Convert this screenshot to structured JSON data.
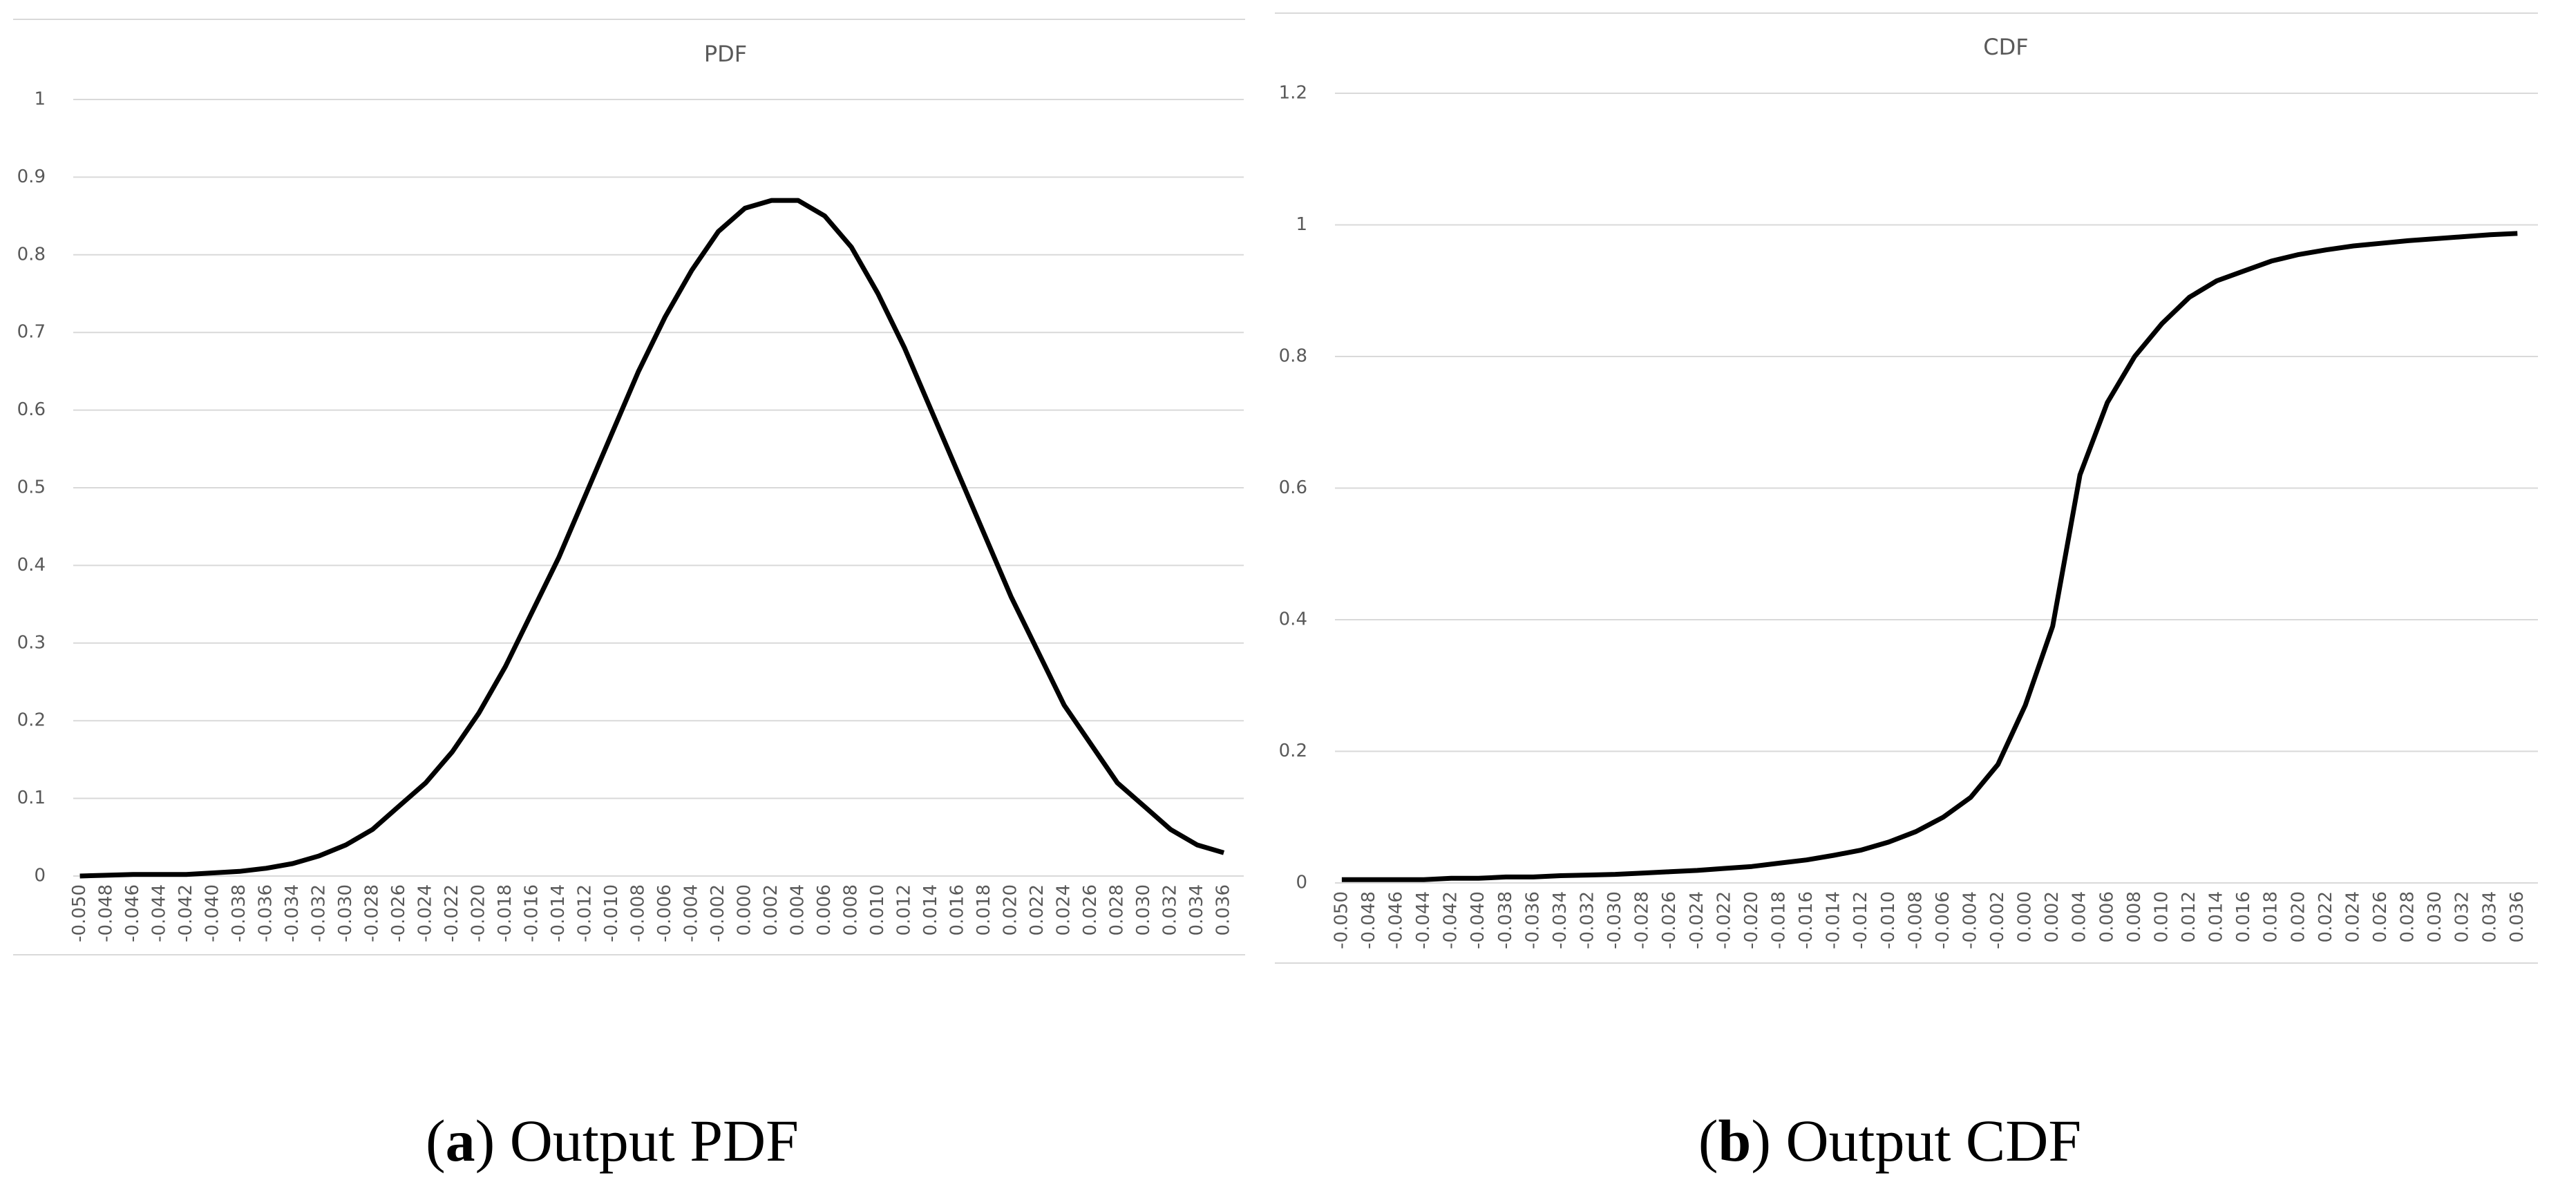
{
  "chart_data": [
    {
      "type": "line",
      "title": "PDF",
      "categories": [
        "-0.050",
        "-0.048",
        "-0.046",
        "-0.044",
        "-0.042",
        "-0.040",
        "-0.038",
        "-0.036",
        "-0.034",
        "-0.032",
        "-0.030",
        "-0.028",
        "-0.026",
        "-0.024",
        "-0.022",
        "-0.020",
        "-0.018",
        "-0.016",
        "-0.014",
        "-0.012",
        "-0.010",
        "-0.008",
        "-0.006",
        "-0.004",
        "-0.002",
        "0.000",
        "0.002",
        "0.004",
        "0.006",
        "0.008",
        "0.010",
        "0.012",
        "0.014",
        "0.016",
        "0.018",
        "0.020",
        "0.022",
        "0.024",
        "0.026",
        "0.028",
        "0.030",
        "0.032",
        "0.034",
        "0.036"
      ],
      "series": [
        {
          "color": "#000000",
          "values": [
            0,
            0.001,
            0.002,
            0.002,
            0.002,
            0.004,
            0.006,
            0.01,
            0.016,
            0.026,
            0.04,
            0.06,
            0.09,
            0.12,
            0.16,
            0.21,
            0.27,
            0.34,
            0.41,
            0.49,
            0.57,
            0.65,
            0.72,
            0.78,
            0.83,
            0.86,
            0.87,
            0.87,
            0.85,
            0.81,
            0.75,
            0.68,
            0.6,
            0.52,
            0.44,
            0.36,
            0.29,
            0.22,
            0.17,
            0.12,
            0.09,
            0.06,
            0.04,
            0.03
          ]
        }
      ],
      "ylim": [
        0,
        1
      ],
      "yticks": [
        0,
        0.1,
        0.2,
        0.3,
        0.4,
        0.5,
        0.6,
        0.7,
        0.8,
        0.9,
        1
      ],
      "grid": true
    },
    {
      "type": "line",
      "title": "CDF",
      "categories": [
        "-0.050",
        "-0.048",
        "-0.046",
        "-0.044",
        "-0.042",
        "-0.040",
        "-0.038",
        "-0.036",
        "-0.034",
        "-0.032",
        "-0.030",
        "-0.028",
        "-0.026",
        "-0.024",
        "-0.022",
        "-0.020",
        "-0.018",
        "-0.016",
        "-0.014",
        "-0.012",
        "-0.010",
        "-0.008",
        "-0.006",
        "-0.004",
        "-0.002",
        "0.000",
        "0.002",
        "0.004",
        "0.006",
        "0.008",
        "0.010",
        "0.012",
        "0.014",
        "0.016",
        "0.018",
        "0.020",
        "0.022",
        "0.024",
        "0.026",
        "0.028",
        "0.030",
        "0.032",
        "0.034",
        "0.036"
      ],
      "series": [
        {
          "color": "#000000",
          "values": [
            0.005,
            0.005,
            0.005,
            0.005,
            0.007,
            0.007,
            0.009,
            0.009,
            0.011,
            0.012,
            0.013,
            0.015,
            0.017,
            0.019,
            0.022,
            0.025,
            0.03,
            0.035,
            0.042,
            0.05,
            0.062,
            0.078,
            0.1,
            0.13,
            0.18,
            0.27,
            0.39,
            0.62,
            0.73,
            0.8,
            0.85,
            0.89,
            0.915,
            0.93,
            0.945,
            0.955,
            0.962,
            0.968,
            0.972,
            0.976,
            0.979,
            0.982,
            0.985,
            0.987
          ]
        }
      ],
      "ylim": [
        0,
        1.2
      ],
      "yticks": [
        0,
        0.2,
        0.4,
        0.6,
        0.8,
        1,
        1.2
      ],
      "grid": true
    }
  ],
  "captions": [
    [
      "(",
      "a",
      ") Output PDF"
    ],
    [
      "(",
      "b",
      ") Output CDF"
    ]
  ]
}
